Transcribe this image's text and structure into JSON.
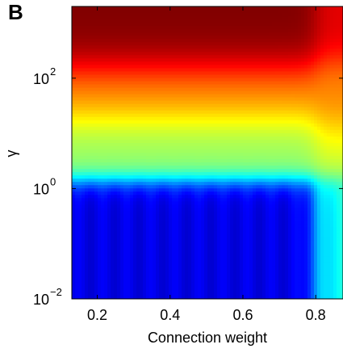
{
  "panel_label": "B",
  "chart_data": {
    "type": "heatmap",
    "title": "",
    "xlabel": "Connection weight",
    "ylabel": "γ",
    "xlim": [
      0.13,
      0.875
    ],
    "ylim_log10": [
      -2,
      3.3
    ],
    "y_scale": "log",
    "grid": false,
    "colormap": "jet",
    "x_ticks": [
      {
        "value": 0.2,
        "label": "0.2"
      },
      {
        "value": 0.4,
        "label": "0.4"
      },
      {
        "value": 0.6,
        "label": "0.6"
      },
      {
        "value": 0.8,
        "label": "0.8"
      }
    ],
    "y_ticks": [
      {
        "value": 0.01,
        "base": "10",
        "exp": "−2"
      },
      {
        "value": 1,
        "base": "10",
        "exp": "0"
      },
      {
        "value": 100,
        "base": "10",
        "exp": "2"
      }
    ],
    "regions": [
      {
        "description": "gamma above ~3e2",
        "level": 1.0
      },
      {
        "description": "gamma ~1e1 to 1e2",
        "level": 0.8
      },
      {
        "description": "gamma ~1e0 to 1e1",
        "level": 0.55
      },
      {
        "description": "gamma below ~0.5, weight below 0.8",
        "level": 0.12
      },
      {
        "description": "gamma ~1e1 to 1e2, weight above 0.8",
        "level": 0.72
      }
    ]
  }
}
